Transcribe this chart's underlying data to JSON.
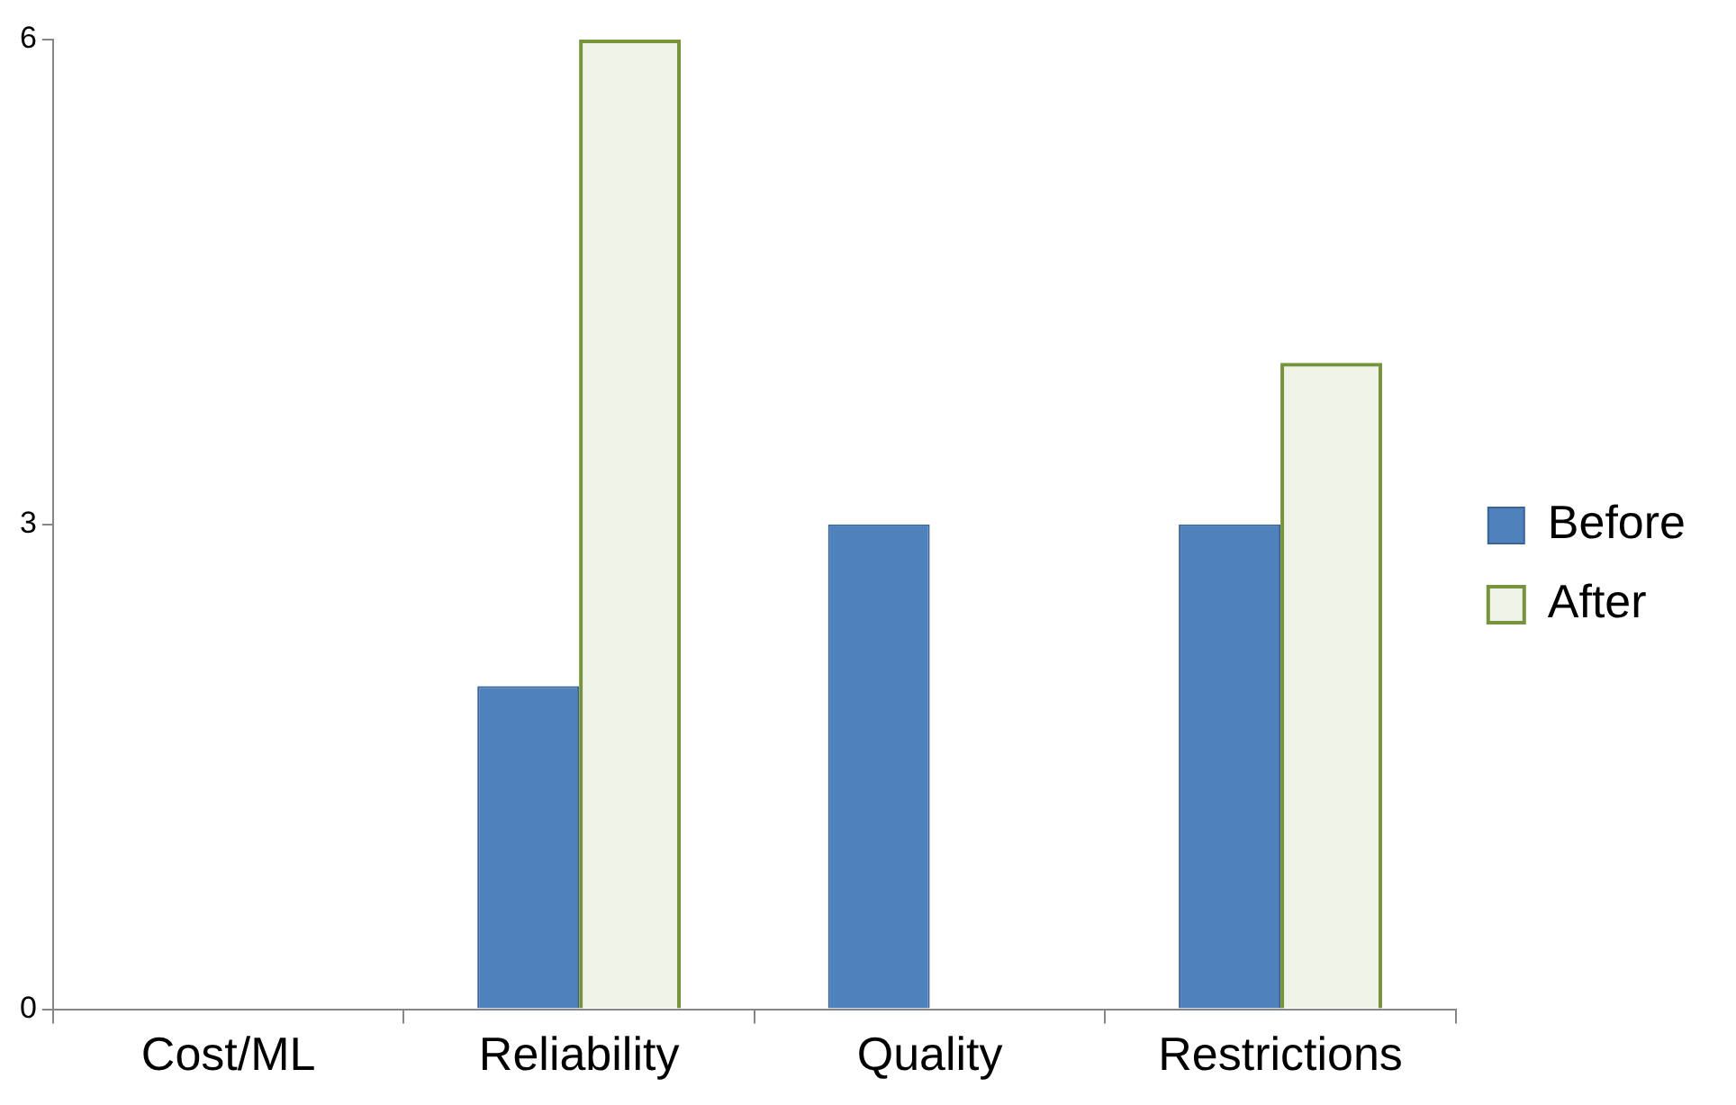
{
  "chart_data": {
    "type": "bar",
    "categories": [
      "Cost/ML",
      "Reliability",
      "Quality",
      "Restrictions"
    ],
    "series": [
      {
        "name": "Before",
        "color": "#4f81bd",
        "values": [
          0,
          2,
          3,
          3
        ]
      },
      {
        "name": "After",
        "color": "#77933c",
        "values": [
          0,
          6,
          0,
          4
        ]
      }
    ],
    "ylim": [
      0,
      6
    ],
    "yticks": [
      0,
      3,
      6
    ],
    "grid": false,
    "legend": "right"
  }
}
